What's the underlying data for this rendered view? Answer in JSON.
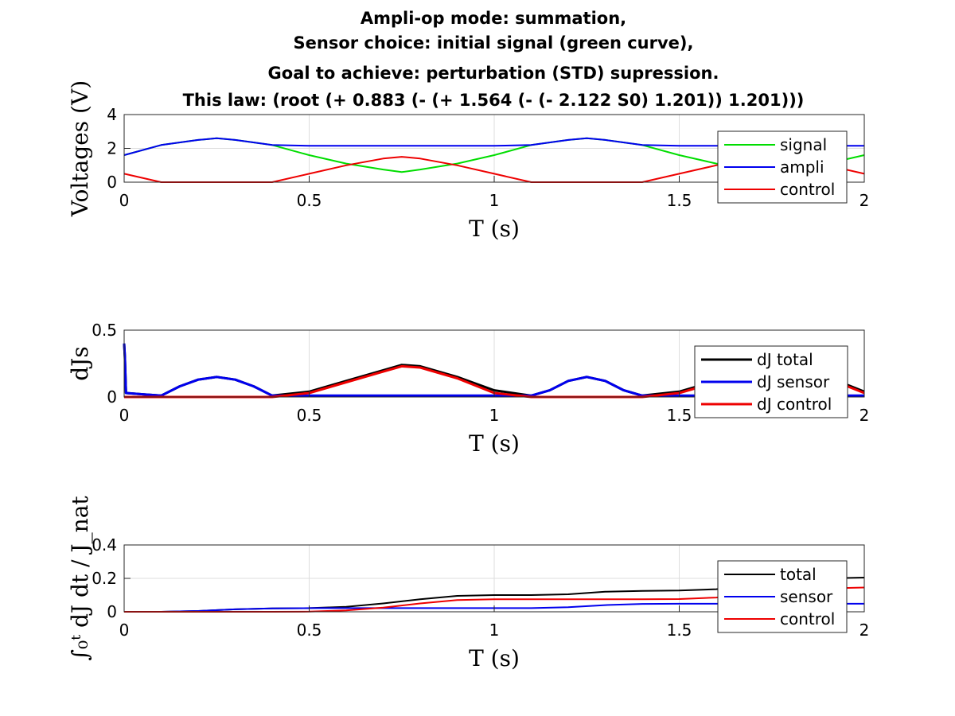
{
  "title_lines": [
    "Ampli-op mode: summation,",
    "Sensor choice: initial signal (green curve),",
    "Goal to achieve: perturbation (STD) supression.",
    "This law: (root (+ 0.883 (- (+ 1.564 (- (- 2.122 S0) 1.201)) 1.201)))"
  ],
  "chart_data": [
    {
      "type": "line",
      "xlabel": "T (s)",
      "ylabel": "Voltages (V)",
      "xlim": [
        0,
        2
      ],
      "ylim": [
        0,
        4
      ],
      "xticks": [
        0,
        0.5,
        1,
        1.5,
        2
      ],
      "yticks": [
        0,
        2,
        4
      ],
      "xtick_labels": [
        "0",
        "0.5",
        "1",
        "1.5",
        "2"
      ],
      "ytick_labels": [
        "0",
        "2",
        "4"
      ],
      "grid": true,
      "legend_position": "right",
      "x": [
        0,
        0.1,
        0.2,
        0.25,
        0.3,
        0.4,
        0.5,
        0.6,
        0.7,
        0.75,
        0.8,
        0.9,
        1.0,
        1.1,
        1.2,
        1.25,
        1.3,
        1.4,
        1.5,
        1.6,
        1.7,
        1.75,
        1.8,
        1.9,
        2.0
      ],
      "series": [
        {
          "name": "signal",
          "color": "#00dd00",
          "values": [
            1.6,
            2.2,
            2.5,
            2.6,
            2.5,
            2.2,
            1.6,
            1.1,
            0.75,
            0.6,
            0.75,
            1.1,
            1.6,
            2.2,
            2.5,
            2.6,
            2.5,
            2.2,
            1.6,
            1.1,
            0.75,
            0.6,
            0.75,
            1.1,
            1.6
          ]
        },
        {
          "name": "ampli",
          "color": "#0000ee",
          "values": [
            1.6,
            2.2,
            2.5,
            2.6,
            2.5,
            2.2,
            2.15,
            2.15,
            2.15,
            2.15,
            2.15,
            2.15,
            2.15,
            2.2,
            2.5,
            2.6,
            2.5,
            2.2,
            2.15,
            2.15,
            2.15,
            2.15,
            2.15,
            2.15,
            2.15
          ]
        },
        {
          "name": "control",
          "color": "#ee0000",
          "values": [
            0.5,
            0.0,
            0.0,
            0.0,
            0.0,
            0.0,
            0.5,
            1.0,
            1.4,
            1.5,
            1.4,
            1.0,
            0.5,
            0.0,
            0.0,
            0.0,
            0.0,
            0.0,
            0.5,
            1.0,
            1.4,
            1.5,
            1.4,
            1.0,
            0.5
          ]
        }
      ]
    },
    {
      "type": "line",
      "xlabel": "T (s)",
      "ylabel": "dJs",
      "xlim": [
        0,
        2
      ],
      "ylim": [
        0,
        0.5
      ],
      "xticks": [
        0,
        0.5,
        1,
        1.5,
        2
      ],
      "yticks": [
        0,
        0.5
      ],
      "xtick_labels": [
        "0",
        "0.5",
        "1",
        "1.5",
        "2"
      ],
      "ytick_labels": [
        "0",
        "0.5"
      ],
      "grid": true,
      "legend_position": "right",
      "x": [
        0,
        0.002,
        0.005,
        0.05,
        0.1,
        0.15,
        0.2,
        0.25,
        0.3,
        0.35,
        0.4,
        0.5,
        0.6,
        0.7,
        0.75,
        0.8,
        0.9,
        1.0,
        1.1,
        1.15,
        1.2,
        1.25,
        1.3,
        1.35,
        1.4,
        1.5,
        1.6,
        1.7,
        1.75,
        1.8,
        1.9,
        2.0
      ],
      "series": [
        {
          "name": "dJ total",
          "color": "#000000",
          "values": [
            0.4,
            0.3,
            0.03,
            0.02,
            0.01,
            0.08,
            0.13,
            0.15,
            0.13,
            0.08,
            0.01,
            0.04,
            0.12,
            0.2,
            0.24,
            0.23,
            0.15,
            0.05,
            0.01,
            0.05,
            0.12,
            0.15,
            0.12,
            0.05,
            0.01,
            0.04,
            0.12,
            0.2,
            0.24,
            0.23,
            0.15,
            0.04
          ]
        },
        {
          "name": "dJ sensor",
          "color": "#0000ee",
          "values": [
            0.4,
            0.3,
            0.03,
            0.02,
            0.01,
            0.08,
            0.13,
            0.15,
            0.13,
            0.08,
            0.01,
            0.01,
            0.01,
            0.01,
            0.01,
            0.01,
            0.01,
            0.01,
            0.01,
            0.05,
            0.12,
            0.15,
            0.12,
            0.05,
            0.01,
            0.01,
            0.01,
            0.01,
            0.01,
            0.01,
            0.01,
            0.01
          ]
        },
        {
          "name": "dJ control",
          "color": "#ee0000",
          "values": [
            0.0,
            0.0,
            0.0,
            0.0,
            0.0,
            0.0,
            0.0,
            0.0,
            0.0,
            0.0,
            0.0,
            0.03,
            0.11,
            0.19,
            0.23,
            0.22,
            0.14,
            0.03,
            0.0,
            0.0,
            0.0,
            0.0,
            0.0,
            0.0,
            0.0,
            0.03,
            0.11,
            0.19,
            0.23,
            0.22,
            0.14,
            0.03
          ]
        }
      ]
    },
    {
      "type": "line",
      "xlabel": "T (s)",
      "ylabel": "∫₀ᵗ dJ dt / J_nat",
      "xlim": [
        0,
        2
      ],
      "ylim": [
        0,
        0.4
      ],
      "xticks": [
        0,
        0.5,
        1,
        1.5,
        2
      ],
      "yticks": [
        0,
        0.2,
        0.4
      ],
      "xtick_labels": [
        "0",
        "0.5",
        "1",
        "1.5",
        "2"
      ],
      "ytick_labels": [
        "0",
        "0.2",
        "0.4"
      ],
      "grid": true,
      "legend_position": "right",
      "x": [
        0,
        0.1,
        0.2,
        0.3,
        0.4,
        0.5,
        0.6,
        0.7,
        0.8,
        0.9,
        1.0,
        1.1,
        1.2,
        1.3,
        1.4,
        1.5,
        1.6,
        1.7,
        1.8,
        1.9,
        2.0
      ],
      "series": [
        {
          "name": "total",
          "color": "#000000",
          "values": [
            0.0,
            0.0,
            0.005,
            0.015,
            0.02,
            0.022,
            0.03,
            0.05,
            0.075,
            0.095,
            0.1,
            0.1,
            0.105,
            0.12,
            0.125,
            0.127,
            0.135,
            0.155,
            0.18,
            0.2,
            0.205
          ]
        },
        {
          "name": "sensor",
          "color": "#0000ee",
          "values": [
            0.0,
            0.0,
            0.005,
            0.015,
            0.02,
            0.022,
            0.022,
            0.022,
            0.022,
            0.022,
            0.022,
            0.022,
            0.027,
            0.04,
            0.047,
            0.048,
            0.048,
            0.048,
            0.048,
            0.048,
            0.048
          ]
        },
        {
          "name": "control",
          "color": "#ee0000",
          "values": [
            0.0,
            0.0,
            0.0,
            0.0,
            0.0,
            0.001,
            0.008,
            0.025,
            0.05,
            0.07,
            0.075,
            0.075,
            0.075,
            0.075,
            0.075,
            0.076,
            0.085,
            0.105,
            0.125,
            0.14,
            0.145
          ]
        }
      ]
    }
  ]
}
